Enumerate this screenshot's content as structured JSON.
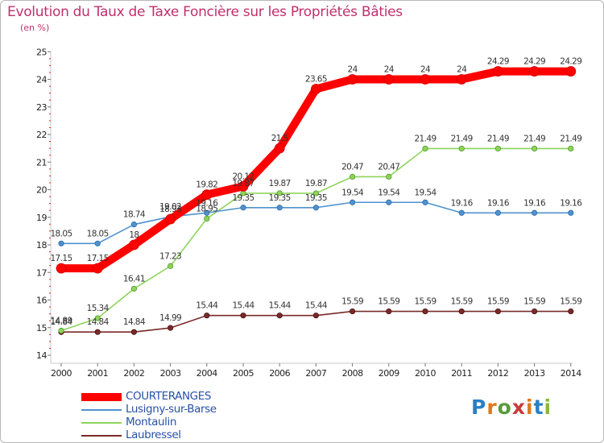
{
  "title": "Evolution du Taux de Taxe Foncière sur les Propriétés Bâties",
  "unit_label": "(en %)",
  "brand": {
    "text": "Proxiti",
    "letter_colors": [
      "#2a7fc4",
      "#e0781a",
      "#5a9a3a",
      "#c83a3a",
      "#e0781a",
      "#2a7fc4",
      "#8ab83a"
    ]
  },
  "chart_data": {
    "type": "line",
    "title": "Evolution du Taux de Taxe Foncière sur les Propriétés Bâties",
    "ylabel": "(en %)",
    "xlabel": "",
    "ylim": [
      14,
      25
    ],
    "grid": false,
    "legend_position": "bottom-left",
    "x": [
      "2000",
      "2001",
      "2002",
      "2003",
      "2004",
      "2005",
      "2006",
      "2007",
      "2008",
      "2009",
      "2010",
      "2011",
      "2012",
      "2013",
      "2014"
    ],
    "y_ticks": [
      "14",
      "15",
      "16",
      "17",
      "18",
      "19",
      "20",
      "21",
      "22",
      "23",
      "24",
      "25"
    ],
    "series": [
      {
        "name": "COURTERANGES",
        "color": "#ff0000",
        "values": [
          17.15,
          17.15,
          18,
          18.93,
          19.82,
          20.12,
          21.5,
          23.65,
          24,
          24,
          24,
          24,
          24.29,
          24.29,
          24.29
        ],
        "labels": [
          "17.15",
          "17.15",
          "18",
          "18.93",
          "19.82",
          "20.12",
          "21.5",
          "23.65",
          "24",
          "24",
          "24",
          "24",
          "24.29",
          "24.29",
          "24.29"
        ]
      },
      {
        "name": "Lusigny-sur-Barse",
        "color": "#4f92cf",
        "values": [
          18.05,
          18.05,
          18.74,
          19.02,
          19.16,
          19.35,
          19.35,
          19.35,
          19.54,
          19.54,
          19.54,
          19.16,
          19.16,
          19.16,
          19.16
        ],
        "labels": [
          "18.05",
          "18.05",
          "18.74",
          "19.02",
          "19.16",
          "19.35",
          "19.35",
          "19.35",
          "19.54",
          "19.54",
          "19.54",
          "19.16",
          "19.16",
          "19.16",
          "19.16"
        ]
      },
      {
        "name": "Montaulin",
        "color": "#8ed45a",
        "values": [
          14.89,
          15.34,
          16.41,
          17.23,
          18.95,
          19.87,
          19.87,
          19.87,
          20.47,
          20.47,
          21.49,
          21.49,
          21.49,
          21.49,
          21.49
        ],
        "labels": [
          "14.89",
          "15.34",
          "16.41",
          "17.23",
          "18.95",
          "19.87",
          "19.87",
          "19.87",
          "20.47",
          "20.47",
          "21.49",
          "21.49",
          "21.49",
          "21.49",
          "21.49"
        ]
      },
      {
        "name": "Laubressel",
        "color": "#7a2a2a",
        "values": [
          14.84,
          14.84,
          14.84,
          14.99,
          15.44,
          15.44,
          15.44,
          15.44,
          15.59,
          15.59,
          15.59,
          15.59,
          15.59,
          15.59,
          15.59
        ],
        "labels": [
          "14.84",
          "14.84",
          "14.84",
          "14.99",
          "15.44",
          "15.44",
          "15.44",
          "15.44",
          "15.59",
          "15.59",
          "15.59",
          "15.59",
          "15.59",
          "15.59",
          "15.59"
        ]
      }
    ]
  }
}
